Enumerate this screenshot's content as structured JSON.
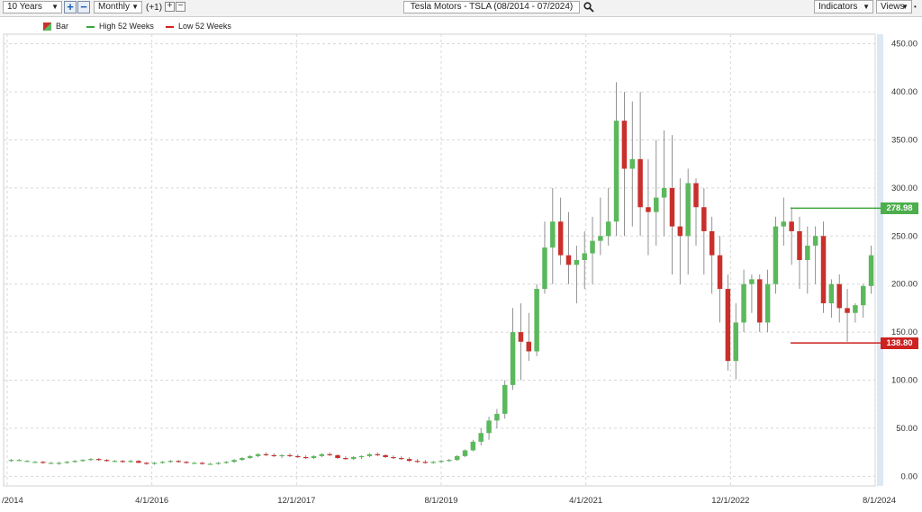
{
  "toolbar": {
    "period": "10 Years",
    "plus": "+",
    "minus": "−",
    "interval": "Monthly",
    "offset": "(+1)",
    "small_plus": "+",
    "small_minus": "−",
    "title": "Tesla Motors - TSLA (08/2014 - 07/2024)",
    "indicators": "Indicators",
    "views": "Views",
    "search_icon": "search-icon",
    "dropdown_icon": "chevron-down-icon"
  },
  "legend": {
    "bar": "Bar",
    "high": "High 52 Weeks",
    "low": "Low 52 Weeks"
  },
  "colors": {
    "up": "#5cb85c",
    "down": "#c9302c",
    "high": "#3aa63a",
    "low": "#cc2222",
    "grid": "#d8d8d8"
  },
  "chart_data": {
    "type": "candlestick",
    "title": "Tesla Motors - TSLA (08/2014 - 07/2024)",
    "interval": "Monthly",
    "y_ticks": [
      "450.00",
      "400.00",
      "350.00",
      "300.00",
      "250.00",
      "200.00",
      "150.00",
      "100.00",
      "50.00",
      "0.00"
    ],
    "ylim": [
      -10,
      460
    ],
    "x_ticks": [
      "/2014",
      "4/1/2016",
      "12/1/2017",
      "8/1/2019",
      "4/1/2021",
      "12/1/2022",
      "8/1/2024"
    ],
    "high_52_weeks": 278.98,
    "low_52_weeks": 138.8,
    "high_label": "278.98",
    "low_label": "138.80",
    "ohlc": [
      [
        16,
        18,
        15,
        17
      ],
      [
        17,
        18,
        16,
        17
      ],
      [
        16,
        17,
        15,
        16
      ],
      [
        15,
        16,
        14,
        15
      ],
      [
        15,
        16,
        13,
        14
      ],
      [
        14,
        15,
        13,
        14
      ],
      [
        13,
        15,
        12,
        14
      ],
      [
        14,
        16,
        13,
        15
      ],
      [
        15,
        17,
        14,
        16
      ],
      [
        16,
        18,
        15,
        17
      ],
      [
        17,
        19,
        16,
        18
      ],
      [
        18,
        19,
        16,
        17
      ],
      [
        17,
        18,
        15,
        16
      ],
      [
        16,
        17,
        15,
        16
      ],
      [
        16,
        17,
        14,
        15
      ],
      [
        15,
        17,
        14,
        16
      ],
      [
        16,
        17,
        14,
        14
      ],
      [
        14,
        15,
        12,
        13
      ],
      [
        13,
        15,
        12,
        14
      ],
      [
        14,
        16,
        13,
        15
      ],
      [
        15,
        17,
        14,
        16
      ],
      [
        16,
        17,
        14,
        15
      ],
      [
        15,
        16,
        13,
        14
      ],
      [
        14,
        15,
        13,
        14
      ],
      [
        14,
        15,
        12,
        13
      ],
      [
        13,
        14,
        12,
        13
      ],
      [
        13,
        15,
        12,
        14
      ],
      [
        14,
        16,
        13,
        15
      ],
      [
        15,
        18,
        14,
        17
      ],
      [
        17,
        20,
        16,
        19
      ],
      [
        19,
        22,
        18,
        21
      ],
      [
        21,
        24,
        20,
        23
      ],
      [
        23,
        25,
        21,
        22
      ],
      [
        22,
        24,
        20,
        21
      ],
      [
        21,
        23,
        19,
        22
      ],
      [
        22,
        24,
        20,
        21
      ],
      [
        21,
        23,
        19,
        20
      ],
      [
        20,
        22,
        18,
        19
      ],
      [
        19,
        22,
        18,
        21
      ],
      [
        21,
        24,
        20,
        23
      ],
      [
        23,
        25,
        21,
        22
      ],
      [
        22,
        23,
        18,
        19
      ],
      [
        19,
        21,
        17,
        18
      ],
      [
        18,
        21,
        17,
        20
      ],
      [
        20,
        22,
        18,
        21
      ],
      [
        21,
        24,
        20,
        23
      ],
      [
        23,
        25,
        21,
        22
      ],
      [
        22,
        23,
        19,
        20
      ],
      [
        20,
        22,
        18,
        19
      ],
      [
        19,
        21,
        17,
        18
      ],
      [
        18,
        20,
        15,
        16
      ],
      [
        16,
        18,
        14,
        15
      ],
      [
        15,
        17,
        13,
        14
      ],
      [
        14,
        16,
        13,
        15
      ],
      [
        15,
        17,
        14,
        16
      ],
      [
        16,
        18,
        15,
        17
      ],
      [
        17,
        22,
        16,
        21
      ],
      [
        21,
        28,
        20,
        27
      ],
      [
        27,
        38,
        26,
        36
      ],
      [
        36,
        50,
        32,
        45
      ],
      [
        45,
        62,
        38,
        58
      ],
      [
        58,
        70,
        50,
        65
      ],
      [
        65,
        100,
        60,
        95
      ],
      [
        95,
        175,
        90,
        150
      ],
      [
        150,
        180,
        100,
        140
      ],
      [
        140,
        170,
        120,
        130
      ],
      [
        130,
        200,
        125,
        195
      ],
      [
        195,
        265,
        190,
        238
      ],
      [
        238,
        300,
        200,
        265
      ],
      [
        265,
        290,
        220,
        230
      ],
      [
        230,
        275,
        200,
        220
      ],
      [
        220,
        240,
        180,
        225
      ],
      [
        225,
        255,
        195,
        232
      ],
      [
        232,
        270,
        200,
        245
      ],
      [
        245,
        290,
        230,
        250
      ],
      [
        250,
        300,
        240,
        265
      ],
      [
        265,
        410,
        250,
        370
      ],
      [
        370,
        400,
        250,
        320
      ],
      [
        320,
        390,
        260,
        330
      ],
      [
        330,
        400,
        250,
        280
      ],
      [
        280,
        330,
        230,
        275
      ],
      [
        275,
        350,
        240,
        290
      ],
      [
        290,
        360,
        250,
        300
      ],
      [
        300,
        355,
        210,
        260
      ],
      [
        260,
        310,
        200,
        250
      ],
      [
        250,
        320,
        210,
        305
      ],
      [
        305,
        310,
        240,
        280
      ],
      [
        280,
        300,
        210,
        255
      ],
      [
        255,
        270,
        190,
        230
      ],
      [
        230,
        250,
        160,
        195
      ],
      [
        195,
        210,
        110,
        120
      ],
      [
        120,
        180,
        101,
        160
      ],
      [
        160,
        215,
        150,
        200
      ],
      [
        200,
        210,
        170,
        205
      ],
      [
        205,
        210,
        150,
        160
      ],
      [
        160,
        215,
        150,
        200
      ],
      [
        200,
        270,
        190,
        260
      ],
      [
        260,
        290,
        240,
        265
      ],
      [
        265,
        280,
        220,
        255
      ],
      [
        255,
        270,
        195,
        225
      ],
      [
        225,
        260,
        190,
        240
      ],
      [
        240,
        260,
        200,
        250
      ],
      [
        250,
        265,
        170,
        180
      ],
      [
        180,
        205,
        165,
        200
      ],
      [
        200,
        210,
        160,
        175
      ],
      [
        175,
        195,
        140,
        170
      ],
      [
        170,
        180,
        160,
        178
      ],
      [
        178,
        200,
        165,
        198
      ],
      [
        198,
        240,
        190,
        230
      ]
    ]
  }
}
